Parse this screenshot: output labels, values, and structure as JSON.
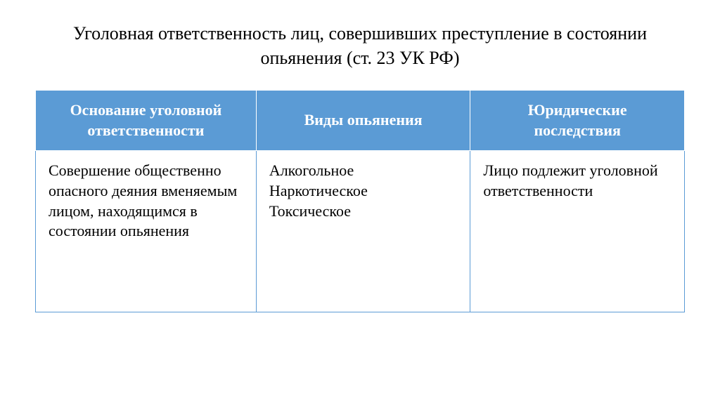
{
  "title": "Уголовная ответственность лиц, совершивших преступление в состоянии опьянения (ст. 23 УК РФ)",
  "table": {
    "type": "table",
    "header_bg_color": "#5b9bd5",
    "header_text_color": "#ffffff",
    "body_bg_color": "#ffffff",
    "body_text_color": "#000000",
    "border_color": "#5b9bd5",
    "columns": [
      {
        "label": "Основание уголовной ответственности",
        "width": "34%"
      },
      {
        "label": "Виды опьянения",
        "width": "33%"
      },
      {
        "label": "Юридические последствия",
        "width": "33%"
      }
    ],
    "rows": [
      [
        "Совершение общественно опасного деяния вменяемым лицом, находящимся в состоянии опьянения",
        "Алкогольное\nНаркотическое\nТоксическое",
        "Лицо подлежит уголовной ответственности"
      ]
    ],
    "font_family": "Times New Roman",
    "title_fontsize": 26,
    "cell_fontsize": 22
  }
}
